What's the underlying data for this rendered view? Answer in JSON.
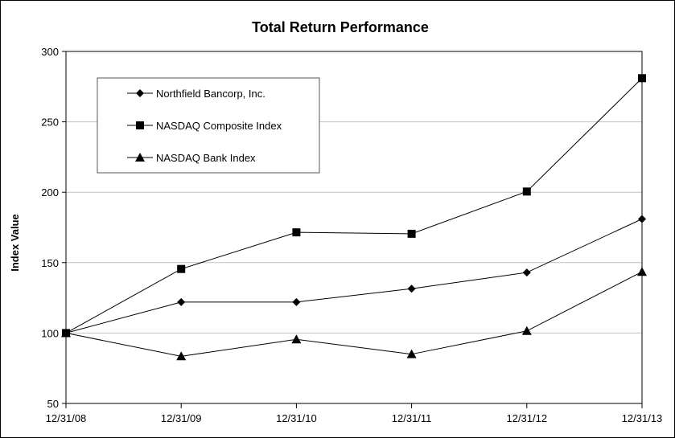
{
  "chart_data": {
    "type": "line",
    "title": "Total Return Performance",
    "xlabel": "",
    "ylabel": "Index Value",
    "categories": [
      "12/31/08",
      "12/31/09",
      "12/31/10",
      "12/31/11",
      "12/31/12",
      "12/31/13"
    ],
    "yticks": [
      "50",
      "100",
      "150",
      "200",
      "250",
      "300"
    ],
    "ylim": [
      50,
      300
    ],
    "grid": true,
    "legend_position": "top-left",
    "series": [
      {
        "name": "Northfield Bancorp, Inc.",
        "marker": "diamond",
        "values": [
          100,
          122,
          122,
          131.5,
          143,
          181
        ]
      },
      {
        "name": "NASDAQ Composite Index",
        "marker": "square",
        "values": [
          100,
          145.5,
          171.5,
          170.5,
          200.5,
          281
        ]
      },
      {
        "name": "NASDAQ Bank Index",
        "marker": "triangle",
        "values": [
          100,
          83.5,
          95.5,
          85,
          101.5,
          143.5
        ]
      }
    ],
    "colors": {
      "line": "#000000",
      "grid": "#c0c0c0",
      "frame": "#000000"
    }
  }
}
